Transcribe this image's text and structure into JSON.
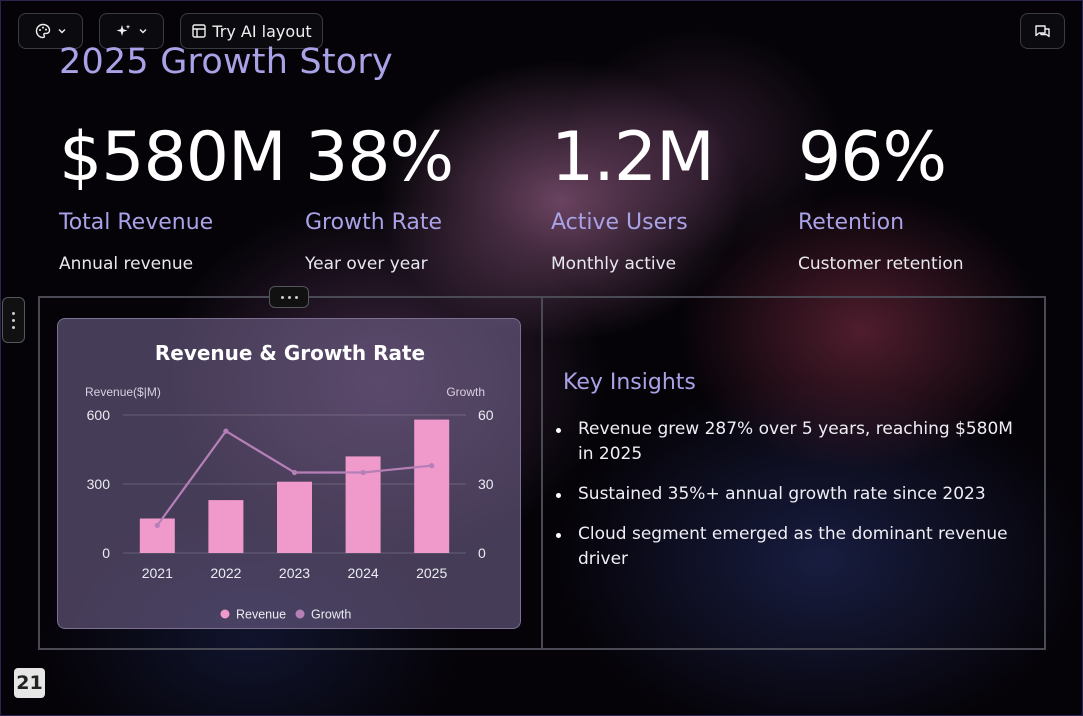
{
  "toolbar": {
    "theme_icon": "palette-icon",
    "ai_icon": "sparkle-icon",
    "try_ai_label": "Try AI layout",
    "layout_icon": "layout-icon",
    "comment_icon": "comment-icon"
  },
  "slide": {
    "title": "2025 Growth Story",
    "stats": [
      {
        "value": "$580M",
        "label": "Total Revenue",
        "sub": "Annual revenue"
      },
      {
        "value": "38%",
        "label": "Growth Rate",
        "sub": "Year over year"
      },
      {
        "value": "1.2M",
        "label": "Active Users",
        "sub": "Monthly active"
      },
      {
        "value": "96%",
        "label": "Retention",
        "sub": "Customer retention"
      }
    ],
    "insights": {
      "title": "Key Insights",
      "items": [
        "Revenue grew 287% over 5 years, reaching $580M in 2025",
        "Sustained 35%+ annual growth rate since 2023",
        "Cloud segment emerged as the dominant revenue driver"
      ]
    },
    "page_number": "21"
  },
  "colors": {
    "accent": "#a9a2e6",
    "bar": "#f09acb",
    "line": "#b77fb8"
  },
  "chart_data": {
    "type": "bar",
    "title": "Revenue & Growth Rate",
    "categories": [
      "2021",
      "2022",
      "2023",
      "2024",
      "2025"
    ],
    "series": [
      {
        "name": "Revenue",
        "type": "bar",
        "axis": "left",
        "values": [
          150,
          230,
          310,
          420,
          580
        ]
      },
      {
        "name": "Growth",
        "type": "line",
        "axis": "right",
        "values": [
          12,
          53,
          35,
          35,
          38
        ]
      }
    ],
    "ylabel": "Revenue($|M)",
    "y2label": "Growth",
    "ylim": [
      0,
      600
    ],
    "y2lim": [
      0,
      60
    ],
    "yticks": [
      0,
      300,
      600
    ],
    "y2ticks": [
      0,
      30,
      60
    ],
    "grid": true,
    "legend": "bottom"
  }
}
